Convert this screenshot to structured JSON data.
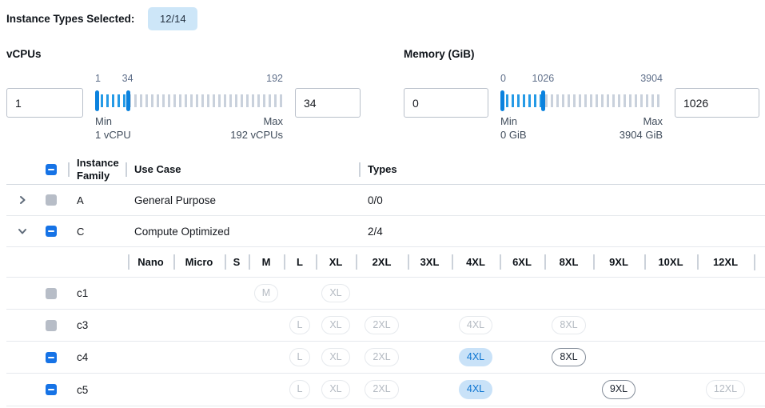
{
  "header": {
    "label": "Instance Types Selected:",
    "badge": "12/14"
  },
  "filters": [
    {
      "title": "vCPUs",
      "from_value": "1",
      "to_value": "34",
      "range": {
        "min": 1,
        "max": 192,
        "low": 1,
        "high": 34
      },
      "scale_labels": {
        "low": "1",
        "high": "34",
        "end": "192"
      },
      "min_label": "Min",
      "min_detail": "1 vCPU",
      "max_label": "Max",
      "max_detail": "192 vCPUs"
    },
    {
      "title": "Memory (GiB)",
      "from_value": "0",
      "to_value": "1026",
      "range": {
        "min": 0,
        "max": 3904,
        "low": 0,
        "high": 1026
      },
      "scale_labels": {
        "low": "0",
        "high": "1026",
        "end": "3904"
      },
      "min_label": "Min",
      "min_detail": "0 GiB",
      "max_label": "Max",
      "max_detail": "3904 GiB"
    }
  ],
  "table": {
    "columns": {
      "family": "Instance Family",
      "use_case": "Use Case",
      "types": "Types"
    },
    "select_all_state": "indeterminate",
    "family_rows": [
      {
        "name": "A",
        "use_case": "General Purpose",
        "types": "0/0",
        "expanded": false,
        "checkbox": "disabled"
      },
      {
        "name": "C",
        "use_case": "Compute Optimized",
        "types": "2/4",
        "expanded": true,
        "checkbox": "indeterminate"
      }
    ],
    "size_columns": [
      "Nano",
      "Micro",
      "S",
      "M",
      "L",
      "XL",
      "2XL",
      "3XL",
      "4XL",
      "6XL",
      "8XL",
      "9XL",
      "10XL",
      "12XL"
    ],
    "instance_rows": [
      {
        "name": "c1",
        "checkbox": "disabled",
        "sizes": {
          "M": "disabled",
          "XL": "disabled"
        }
      },
      {
        "name": "c3",
        "checkbox": "disabled",
        "sizes": {
          "L": "disabled",
          "XL": "disabled",
          "2XL": "disabled",
          "4XL": "disabled",
          "8XL": "disabled"
        }
      },
      {
        "name": "c4",
        "checkbox": "indeterminate",
        "sizes": {
          "L": "disabled",
          "XL": "disabled",
          "2XL": "disabled",
          "4XL": "selected",
          "8XL": "enabled"
        }
      },
      {
        "name": "c5",
        "checkbox": "indeterminate",
        "sizes": {
          "L": "disabled",
          "XL": "disabled",
          "2XL": "disabled",
          "4XL": "selected",
          "9XL": "enabled",
          "12XL": "disabled"
        }
      }
    ]
  },
  "colors": {
    "accent_blue": "#1673e6",
    "slider_handle": "#0b82de",
    "slider_active_ticks": "#259ae6",
    "slider_inactive_ticks": "#c9d1dc",
    "badge_bg": "#cde6f8",
    "selected_pill_bg": "#c9e2f8",
    "selected_pill_text": "#0b74d1",
    "disabled_gray": "#b7bdc7"
  }
}
